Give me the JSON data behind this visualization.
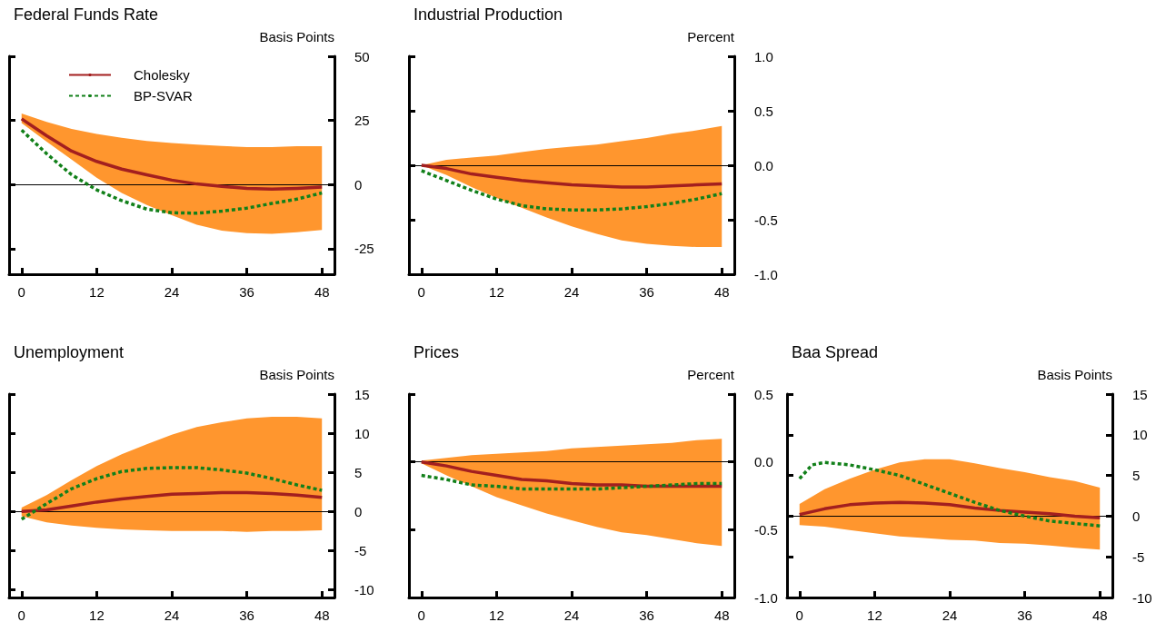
{
  "chart_data": [
    {
      "type": "line",
      "title": "Federal Funds Rate",
      "ylabel": "Basis Points",
      "x": [
        0,
        4,
        8,
        12,
        16,
        20,
        24,
        28,
        32,
        36,
        40,
        44,
        48
      ],
      "xlim": [
        -2,
        50
      ],
      "xticks": [
        0,
        12,
        24,
        36,
        48
      ],
      "ylim": [
        -35,
        50
      ],
      "yticks": [
        -25,
        0,
        25,
        50
      ],
      "legend": "top left",
      "marker": "none",
      "grid": false,
      "series": [
        {
          "name": "Cholesky",
          "color": "#a31f1f",
          "line_style": "solid",
          "values": [
            25.6,
            19,
            13,
            9,
            6,
            3.8,
            1.7,
            0.2,
            -0.7,
            -1.5,
            -1.8,
            -1.5,
            -1
          ],
          "lower": [
            24,
            16.7,
            9.7,
            2.6,
            -3.3,
            -8,
            -12,
            -15.7,
            -18,
            -19,
            -19.2,
            -18.6,
            -17.7
          ],
          "upper": [
            27.7,
            24.4,
            21.7,
            19.7,
            18.2,
            17,
            16.2,
            15.6,
            15,
            14.6,
            14.6,
            14.9,
            14.9
          ]
        },
        {
          "name": "BP-SVAR",
          "color": "#12801a",
          "line_style": "dashed",
          "values": [
            21.2,
            12,
            3.8,
            -2.1,
            -6.3,
            -9.6,
            -11,
            -11.2,
            -10.4,
            -9.2,
            -7.4,
            -5.7,
            -3.3
          ]
        }
      ],
      "ref_lines": [
        {
          "axis": "y",
          "value": 0,
          "color": "#000000"
        }
      ]
    },
    {
      "type": "line",
      "title": "Industrial Production",
      "ylabel": "Percent",
      "x": [
        0,
        4,
        8,
        12,
        16,
        20,
        24,
        28,
        32,
        36,
        40,
        44,
        48
      ],
      "xlim": [
        -2,
        50
      ],
      "xticks": [
        0,
        12,
        24,
        36,
        48
      ],
      "ylim": [
        -1,
        1
      ],
      "yticks": [
        {
          "value": -1,
          "label": "-1.0"
        },
        -0.5,
        {
          "value": 0,
          "label": "0.0"
        },
        0.5,
        {
          "value": 1,
          "label": "1.0"
        }
      ],
      "marker": "none",
      "grid": false,
      "series": [
        {
          "color": "#a31f1f",
          "line_style": "solid",
          "values": [
            0,
            -0.03,
            -0.08,
            -0.11,
            -0.14,
            -0.16,
            -0.18,
            -0.19,
            -0.2,
            -0.2,
            -0.19,
            -0.18,
            -0.17
          ],
          "lower": [
            0,
            -0.09,
            -0.2,
            -0.3,
            -0.39,
            -0.48,
            -0.56,
            -0.63,
            -0.69,
            -0.72,
            -0.74,
            -0.75,
            -0.75
          ],
          "upper": [
            0,
            0.05,
            0.07,
            0.09,
            0.12,
            0.15,
            0.17,
            0.19,
            0.22,
            0.25,
            0.29,
            0.32,
            0.36
          ]
        },
        {
          "color": "#12801a",
          "line_style": "dashed",
          "values": [
            -0.05,
            -0.14,
            -0.23,
            -0.31,
            -0.37,
            -0.4,
            -0.41,
            -0.41,
            -0.4,
            -0.38,
            -0.35,
            -0.31,
            -0.26
          ]
        }
      ],
      "ref_lines": [
        {
          "axis": "y",
          "value": 0,
          "color": "#000000"
        }
      ]
    },
    {
      "type": "line",
      "title": "Unemployment",
      "ylabel": "Basis Points",
      "x": [
        0,
        4,
        8,
        12,
        16,
        20,
        24,
        28,
        32,
        36,
        40,
        44,
        48
      ],
      "xlim": [
        -2,
        50
      ],
      "xticks": [
        0,
        12,
        24,
        36,
        48
      ],
      "ylim": [
        -11,
        15
      ],
      "yticks": [
        -10,
        -5,
        0,
        5,
        10,
        15
      ],
      "marker": "none",
      "grid": false,
      "series": [
        {
          "color": "#a31f1f",
          "line_style": "solid",
          "values": [
            0,
            0.2,
            0.7,
            1.2,
            1.6,
            1.9,
            2.2,
            2.3,
            2.4,
            2.4,
            2.3,
            2.1,
            1.8
          ],
          "lower": [
            -0.6,
            -1.4,
            -1.8,
            -2.1,
            -2.3,
            -2.4,
            -2.5,
            -2.5,
            -2.5,
            -2.6,
            -2.5,
            -2.5,
            -2.4
          ],
          "upper": [
            0.5,
            2.1,
            4,
            5.8,
            7.3,
            8.6,
            9.8,
            10.8,
            11.4,
            11.9,
            12.1,
            12.1,
            11.9
          ]
        },
        {
          "color": "#12801a",
          "line_style": "dashed",
          "values": [
            -1,
            1,
            2.9,
            4.2,
            5.1,
            5.5,
            5.6,
            5.6,
            5.3,
            4.9,
            4.2,
            3.4,
            2.7
          ]
        }
      ],
      "ref_lines": [
        {
          "axis": "y",
          "value": 0,
          "color": "#000000"
        }
      ]
    },
    {
      "type": "line",
      "title": "Prices",
      "ylabel": "Percent",
      "x": [
        0,
        4,
        8,
        12,
        16,
        20,
        24,
        28,
        32,
        36,
        40,
        44,
        48
      ],
      "xlim": [
        -2,
        50
      ],
      "xticks": [
        0,
        12,
        24,
        36,
        48
      ],
      "ylim": [
        -1,
        0.5
      ],
      "yticks": [
        {
          "value": -1,
          "label": "-1.0"
        },
        -0.5,
        {
          "value": 0,
          "label": "0.0"
        },
        0.5
      ],
      "marker": "none",
      "grid": false,
      "series": [
        {
          "color": "#a31f1f",
          "line_style": "solid",
          "values": [
            0,
            -0.03,
            -0.07,
            -0.1,
            -0.13,
            -0.14,
            -0.16,
            -0.17,
            -0.17,
            -0.18,
            -0.18,
            -0.18,
            -0.18
          ],
          "lower": [
            -0.01,
            -0.1,
            -0.18,
            -0.26,
            -0.32,
            -0.38,
            -0.43,
            -0.48,
            -0.52,
            -0.54,
            -0.57,
            -0.6,
            -0.62
          ],
          "upper": [
            0.01,
            0.03,
            0.05,
            0.06,
            0.07,
            0.08,
            0.1,
            0.11,
            0.12,
            0.13,
            0.14,
            0.16,
            0.17
          ]
        },
        {
          "color": "#12801a",
          "line_style": "dashed",
          "values": [
            -0.1,
            -0.13,
            -0.17,
            -0.18,
            -0.2,
            -0.2,
            -0.2,
            -0.2,
            -0.19,
            -0.18,
            -0.17,
            -0.16,
            -0.16
          ]
        }
      ],
      "ref_lines": [
        {
          "axis": "y",
          "value": 0,
          "color": "#000000"
        }
      ]
    },
    {
      "type": "line",
      "title": "Baa Spread",
      "ylabel": "Basis Points",
      "x": [
        0,
        4,
        8,
        12,
        16,
        20,
        24,
        28,
        32,
        36,
        40,
        44,
        48
      ],
      "xlim": [
        -2,
        50
      ],
      "xticks": [
        0,
        12,
        24,
        36,
        48
      ],
      "ylim": [
        -10,
        15
      ],
      "yticks": [
        -10,
        -5,
        0,
        5,
        10,
        15
      ],
      "marker": "none",
      "grid": false,
      "series": [
        {
          "color": "#a31f1f",
          "line_style": "solid",
          "values": [
            0.2,
            0.9,
            1.4,
            1.6,
            1.7,
            1.6,
            1.4,
            1,
            0.7,
            0.5,
            0.3,
            0,
            -0.2
          ],
          "lower": [
            -1.1,
            -1.3,
            -1.7,
            -2.1,
            -2.5,
            -2.7,
            -2.9,
            -3,
            -3.3,
            -3.4,
            -3.6,
            -3.9,
            -4.1
          ],
          "upper": [
            1.5,
            3.3,
            4.6,
            5.7,
            6.6,
            7,
            7,
            6.5,
            5.9,
            5.4,
            4.8,
            4.3,
            3.5
          ]
        },
        {
          "color": "#12801a",
          "line_style": "dashed",
          "x": [
            0,
            2,
            4,
            8,
            12,
            16,
            20,
            24,
            28,
            32,
            36,
            40,
            44,
            48
          ],
          "values": [
            4.6,
            6.3,
            6.6,
            6.3,
            5.7,
            5,
            3.9,
            2.8,
            1.7,
            0.7,
            0,
            -0.6,
            -0.9,
            -1.2
          ]
        }
      ],
      "ref_lines": [
        {
          "axis": "y",
          "value": 0,
          "color": "#000000"
        }
      ]
    }
  ]
}
